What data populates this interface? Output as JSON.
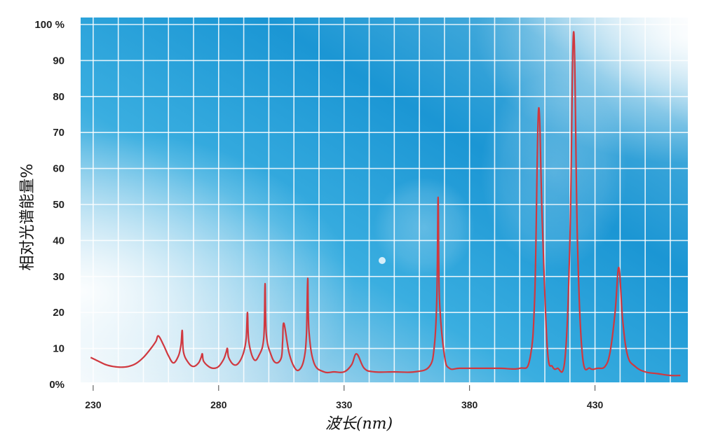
{
  "chart_data": {
    "type": "line",
    "title": "",
    "xlabel": "波长(nm)",
    "ylabel": "相对光谱能量%",
    "xlim": [
      225,
      467
    ],
    "ylim": [
      0,
      100
    ],
    "x_ticks": [
      230,
      280,
      330,
      380,
      430
    ],
    "x_tick_labels": [
      "230",
      "280",
      "330",
      "380",
      "430"
    ],
    "y_ticks": [
      0,
      10,
      20,
      30,
      40,
      50,
      60,
      70,
      80,
      90,
      100
    ],
    "y_tick_labels": [
      "0%",
      "10",
      "20",
      "30",
      "40",
      "50",
      "60",
      "70",
      "80",
      "90",
      "100 %"
    ],
    "grid": true,
    "background_colors": [
      "#cfe8f4",
      "#4fb6e3",
      "#1a97d5",
      "#2aa0d8",
      "#e6f2f8"
    ],
    "line_color": "#d0383f",
    "series": [
      {
        "x": [
          229,
          232,
          235,
          238,
          241,
          244,
          247,
          250,
          253,
          255,
          256,
          258,
          260,
          262,
          264,
          265,
          265.5,
          266,
          268,
          270,
          272,
          273,
          273.5,
          274,
          276,
          278,
          280,
          282,
          283,
          283.5,
          284,
          286,
          288,
          290,
          291,
          291.5,
          292,
          294,
          296,
          298,
          298.5,
          299,
          301,
          303,
          305,
          305.5,
          306,
          308,
          310,
          312,
          314,
          315,
          315.5,
          316,
          318,
          322,
          326,
          330,
          333,
          335,
          338,
          342,
          350,
          358,
          364,
          366,
          367,
          367.5,
          368,
          370,
          372,
          376,
          384,
          392,
          400,
          404,
          406,
          407.5,
          409,
          411,
          413,
          415,
          418,
          420,
          421.5,
          423,
          425,
          428,
          431,
          434,
          436,
          438,
          439.5,
          441,
          443,
          446,
          450,
          455,
          460,
          464
        ],
        "y": [
          7.5,
          6.5,
          5.5,
          5,
          4.8,
          5,
          5.8,
          7.5,
          10,
          12,
          13.5,
          11,
          8,
          6,
          8,
          11,
          15,
          9,
          6,
          5,
          6,
          7.5,
          8.5,
          6.5,
          5,
          4.5,
          5,
          7,
          9,
          10,
          7.5,
          5.5,
          6,
          9,
          13,
          20,
          12,
          7,
          8,
          13,
          28,
          14,
          8,
          6,
          7.5,
          12,
          17,
          9,
          5,
          4,
          7,
          14,
          29.5,
          15,
          6,
          3.5,
          3.5,
          3.5,
          5.5,
          8.5,
          4.5,
          3.5,
          3.5,
          3.5,
          5,
          11,
          25,
          52,
          24,
          8,
          4.5,
          4.5,
          4.5,
          4.5,
          4.5,
          7,
          25,
          76.5,
          45,
          10,
          5,
          4.5,
          7,
          40,
          98,
          40,
          8,
          4.5,
          4.5,
          5,
          9,
          20,
          32.5,
          18,
          8,
          5,
          3.5,
          3,
          2.5,
          2.5
        ]
      }
    ]
  }
}
